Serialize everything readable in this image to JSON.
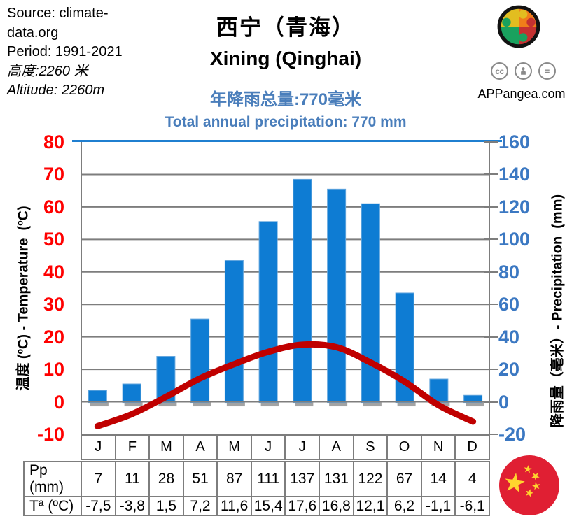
{
  "header": {
    "source_line1": "Source: climate-",
    "source_line2": "data.org",
    "period": "Period: 1991-2021",
    "altitude_zh": "高度:2260 米",
    "altitude_en": "Altitude: 2260m",
    "title_zh": "西宁（青海）",
    "title_en": "Xining (Qinghai)",
    "subtitle_zh": "年降雨总量:770毫米",
    "subtitle_en": "Total annual precipitation: 770 mm",
    "brand": "APPangea.com",
    "cc_label": "cc",
    "nd_label": "="
  },
  "chart_data": {
    "type": "bar",
    "categories": [
      "J",
      "F",
      "M",
      "A",
      "M",
      "J",
      "J",
      "A",
      "S",
      "O",
      "N",
      "D"
    ],
    "series": [
      {
        "name": "Pp (mm)",
        "type": "bar",
        "axis": "right",
        "values": [
          7,
          11,
          28,
          51,
          87,
          111,
          137,
          131,
          122,
          67,
          14,
          4
        ]
      },
      {
        "name": "Tª (ºC)",
        "type": "line",
        "axis": "left",
        "values": [
          -7.5,
          -3.8,
          1.5,
          7.2,
          11.6,
          15.4,
          17.6,
          16.8,
          12.1,
          6.2,
          -1.1,
          -6.1
        ]
      }
    ],
    "title": "西宁（青海） Xining (Qinghai)",
    "subtitle": "Total annual precipitation: 770 mm",
    "left_axis": {
      "label": "温度 (ºC) - Temperature  (ºC)",
      "min": -10,
      "max": 80,
      "step": 10,
      "ticks": [
        "80",
        "70",
        "60",
        "50",
        "40",
        "30",
        "20",
        "10",
        "0",
        "-10"
      ]
    },
    "right_axis": {
      "label": "降雨量（毫米）- Precipitation  (mm)",
      "min": -20,
      "max": 160,
      "step": 20,
      "ticks": [
        "160",
        "140",
        "120",
        "100",
        "80",
        "60",
        "40",
        "20",
        "0",
        "-20"
      ]
    },
    "grid": true,
    "legend": "none"
  },
  "table": {
    "row1_label": "Pp (mm)",
    "row1_values": [
      "7",
      "11",
      "28",
      "51",
      "87",
      "111",
      "137",
      "131",
      "122",
      "67",
      "14",
      "4"
    ],
    "row2_label": "Tª (ºC)",
    "row2_values": [
      "-7,5",
      "-3,8",
      "1,5",
      "7,2",
      "11,6",
      "15,4",
      "17,6",
      "16,8",
      "12,1",
      "6,2",
      "-1,1",
      "-6,1"
    ]
  },
  "colors": {
    "bar_blue": "#0e7cd3",
    "bar_edge": "#5fa4dd",
    "shadow_gray": "#a3a3a3",
    "line_red": "#c00000",
    "left_axis_red": "#ff0000",
    "right_axis_blue": "#3b78c2",
    "subtitle_blue": "#4a7ebb",
    "grid_gray": "#7d7d7d",
    "topline_blue": "#1f7fd0",
    "flag_red": "#e01f33",
    "star_yellow": "#ffd42e",
    "puzzle_yellow": "#e2bd20",
    "puzzle_orange": "#f07d1a",
    "puzzle_green": "#19a15e",
    "puzzle_red": "#c43131"
  }
}
